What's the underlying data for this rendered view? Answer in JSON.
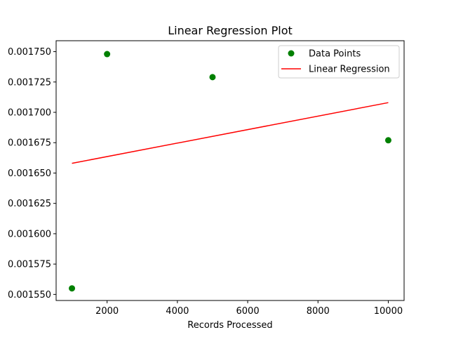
{
  "chart_data": {
    "type": "scatter",
    "title": "Linear Regression Plot",
    "xlabel": "Records Processed",
    "ylabel": "",
    "xlim": [
      550,
      10450
    ],
    "ylim": [
      0.001545,
      0.001759
    ],
    "x_ticks": [
      2000,
      4000,
      6000,
      8000,
      10000
    ],
    "x_tick_labels": [
      "2000",
      "4000",
      "6000",
      "8000",
      "10000"
    ],
    "y_ticks": [
      0.00155,
      0.001575,
      0.0016,
      0.001625,
      0.00165,
      0.001675,
      0.0017,
      0.001725,
      0.00175
    ],
    "y_tick_labels": [
      "0.001550",
      "0.001575",
      "0.001600",
      "0.001625",
      "0.001650",
      "0.001675",
      "0.001700",
      "0.001725",
      "0.001750"
    ],
    "grid": false,
    "legend_position": "top-right",
    "series": [
      {
        "name": "Data Points",
        "kind": "scatter",
        "color": "#008000",
        "points": [
          {
            "x": 1000,
            "y": 0.001555
          },
          {
            "x": 2000,
            "y": 0.001748
          },
          {
            "x": 5000,
            "y": 0.001729
          },
          {
            "x": 10000,
            "y": 0.001677
          }
        ]
      },
      {
        "name": "Linear Regression",
        "kind": "line",
        "color": "#ff0000",
        "points": [
          {
            "x": 1000,
            "y": 0.001658
          },
          {
            "x": 10000,
            "y": 0.001708
          }
        ]
      }
    ]
  }
}
